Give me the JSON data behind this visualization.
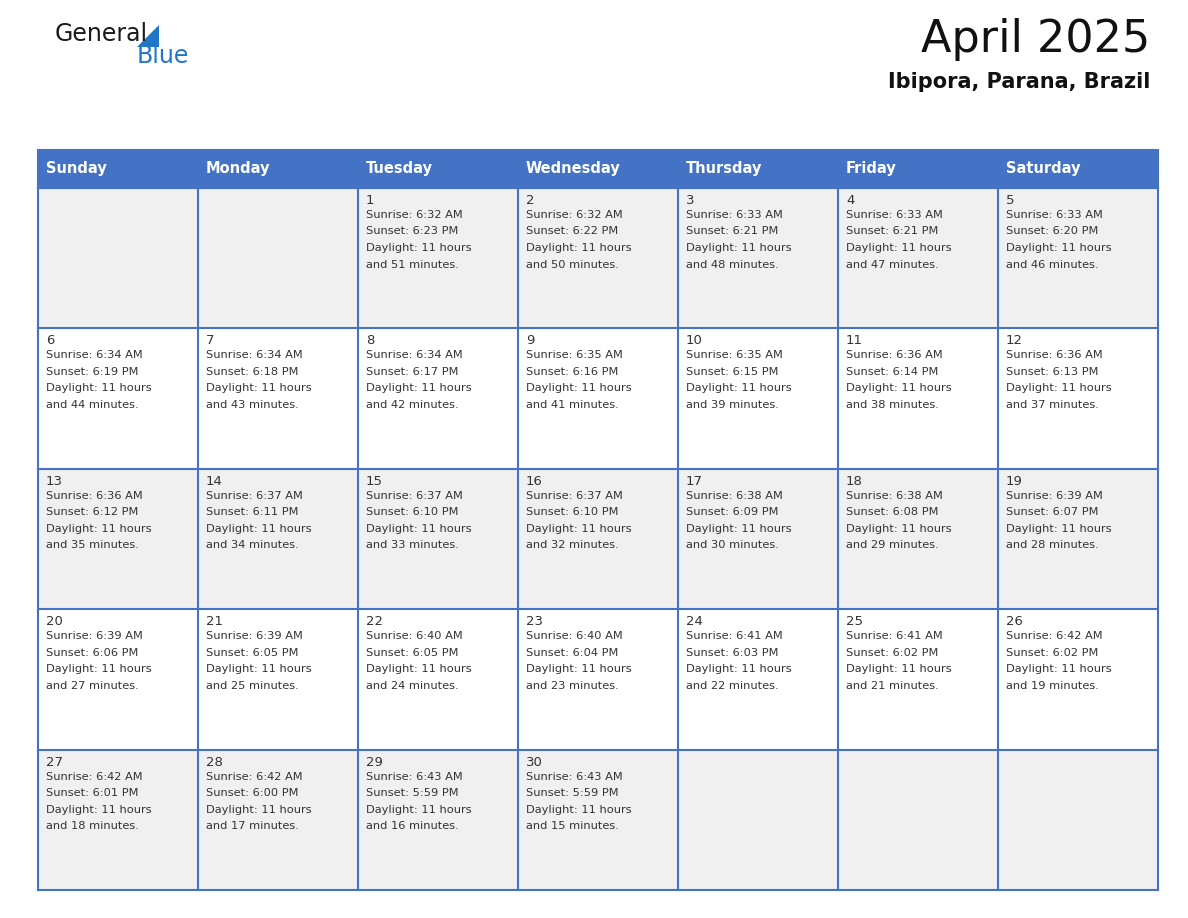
{
  "title": "April 2025",
  "subtitle": "Ibipora, Parana, Brazil",
  "header_bg_color": "#4472C4",
  "header_text_color": "#FFFFFF",
  "cell_bg_odd": "#F0F0F0",
  "cell_bg_even": "#FFFFFF",
  "border_color": "#4472C4",
  "text_color": "#333333",
  "day_names": [
    "Sunday",
    "Monday",
    "Tuesday",
    "Wednesday",
    "Thursday",
    "Friday",
    "Saturday"
  ],
  "days": [
    {
      "day": 1,
      "col": 2,
      "row": 0,
      "sunrise": "6:32 AM",
      "sunset": "6:23 PM",
      "daylight": "11 hours and 51 minutes."
    },
    {
      "day": 2,
      "col": 3,
      "row": 0,
      "sunrise": "6:32 AM",
      "sunset": "6:22 PM",
      "daylight": "11 hours and 50 minutes."
    },
    {
      "day": 3,
      "col": 4,
      "row": 0,
      "sunrise": "6:33 AM",
      "sunset": "6:21 PM",
      "daylight": "11 hours and 48 minutes."
    },
    {
      "day": 4,
      "col": 5,
      "row": 0,
      "sunrise": "6:33 AM",
      "sunset": "6:21 PM",
      "daylight": "11 hours and 47 minutes."
    },
    {
      "day": 5,
      "col": 6,
      "row": 0,
      "sunrise": "6:33 AM",
      "sunset": "6:20 PM",
      "daylight": "11 hours and 46 minutes."
    },
    {
      "day": 6,
      "col": 0,
      "row": 1,
      "sunrise": "6:34 AM",
      "sunset": "6:19 PM",
      "daylight": "11 hours and 44 minutes."
    },
    {
      "day": 7,
      "col": 1,
      "row": 1,
      "sunrise": "6:34 AM",
      "sunset": "6:18 PM",
      "daylight": "11 hours and 43 minutes."
    },
    {
      "day": 8,
      "col": 2,
      "row": 1,
      "sunrise": "6:34 AM",
      "sunset": "6:17 PM",
      "daylight": "11 hours and 42 minutes."
    },
    {
      "day": 9,
      "col": 3,
      "row": 1,
      "sunrise": "6:35 AM",
      "sunset": "6:16 PM",
      "daylight": "11 hours and 41 minutes."
    },
    {
      "day": 10,
      "col": 4,
      "row": 1,
      "sunrise": "6:35 AM",
      "sunset": "6:15 PM",
      "daylight": "11 hours and 39 minutes."
    },
    {
      "day": 11,
      "col": 5,
      "row": 1,
      "sunrise": "6:36 AM",
      "sunset": "6:14 PM",
      "daylight": "11 hours and 38 minutes."
    },
    {
      "day": 12,
      "col": 6,
      "row": 1,
      "sunrise": "6:36 AM",
      "sunset": "6:13 PM",
      "daylight": "11 hours and 37 minutes."
    },
    {
      "day": 13,
      "col": 0,
      "row": 2,
      "sunrise": "6:36 AM",
      "sunset": "6:12 PM",
      "daylight": "11 hours and 35 minutes."
    },
    {
      "day": 14,
      "col": 1,
      "row": 2,
      "sunrise": "6:37 AM",
      "sunset": "6:11 PM",
      "daylight": "11 hours and 34 minutes."
    },
    {
      "day": 15,
      "col": 2,
      "row": 2,
      "sunrise": "6:37 AM",
      "sunset": "6:10 PM",
      "daylight": "11 hours and 33 minutes."
    },
    {
      "day": 16,
      "col": 3,
      "row": 2,
      "sunrise": "6:37 AM",
      "sunset": "6:10 PM",
      "daylight": "11 hours and 32 minutes."
    },
    {
      "day": 17,
      "col": 4,
      "row": 2,
      "sunrise": "6:38 AM",
      "sunset": "6:09 PM",
      "daylight": "11 hours and 30 minutes."
    },
    {
      "day": 18,
      "col": 5,
      "row": 2,
      "sunrise": "6:38 AM",
      "sunset": "6:08 PM",
      "daylight": "11 hours and 29 minutes."
    },
    {
      "day": 19,
      "col": 6,
      "row": 2,
      "sunrise": "6:39 AM",
      "sunset": "6:07 PM",
      "daylight": "11 hours and 28 minutes."
    },
    {
      "day": 20,
      "col": 0,
      "row": 3,
      "sunrise": "6:39 AM",
      "sunset": "6:06 PM",
      "daylight": "11 hours and 27 minutes."
    },
    {
      "day": 21,
      "col": 1,
      "row": 3,
      "sunrise": "6:39 AM",
      "sunset": "6:05 PM",
      "daylight": "11 hours and 25 minutes."
    },
    {
      "day": 22,
      "col": 2,
      "row": 3,
      "sunrise": "6:40 AM",
      "sunset": "6:05 PM",
      "daylight": "11 hours and 24 minutes."
    },
    {
      "day": 23,
      "col": 3,
      "row": 3,
      "sunrise": "6:40 AM",
      "sunset": "6:04 PM",
      "daylight": "11 hours and 23 minutes."
    },
    {
      "day": 24,
      "col": 4,
      "row": 3,
      "sunrise": "6:41 AM",
      "sunset": "6:03 PM",
      "daylight": "11 hours and 22 minutes."
    },
    {
      "day": 25,
      "col": 5,
      "row": 3,
      "sunrise": "6:41 AM",
      "sunset": "6:02 PM",
      "daylight": "11 hours and 21 minutes."
    },
    {
      "day": 26,
      "col": 6,
      "row": 3,
      "sunrise": "6:42 AM",
      "sunset": "6:02 PM",
      "daylight": "11 hours and 19 minutes."
    },
    {
      "day": 27,
      "col": 0,
      "row": 4,
      "sunrise": "6:42 AM",
      "sunset": "6:01 PM",
      "daylight": "11 hours and 18 minutes."
    },
    {
      "day": 28,
      "col": 1,
      "row": 4,
      "sunrise": "6:42 AM",
      "sunset": "6:00 PM",
      "daylight": "11 hours and 17 minutes."
    },
    {
      "day": 29,
      "col": 2,
      "row": 4,
      "sunrise": "6:43 AM",
      "sunset": "5:59 PM",
      "daylight": "11 hours and 16 minutes."
    },
    {
      "day": 30,
      "col": 3,
      "row": 4,
      "sunrise": "6:43 AM",
      "sunset": "5:59 PM",
      "daylight": "11 hours and 15 minutes."
    }
  ]
}
